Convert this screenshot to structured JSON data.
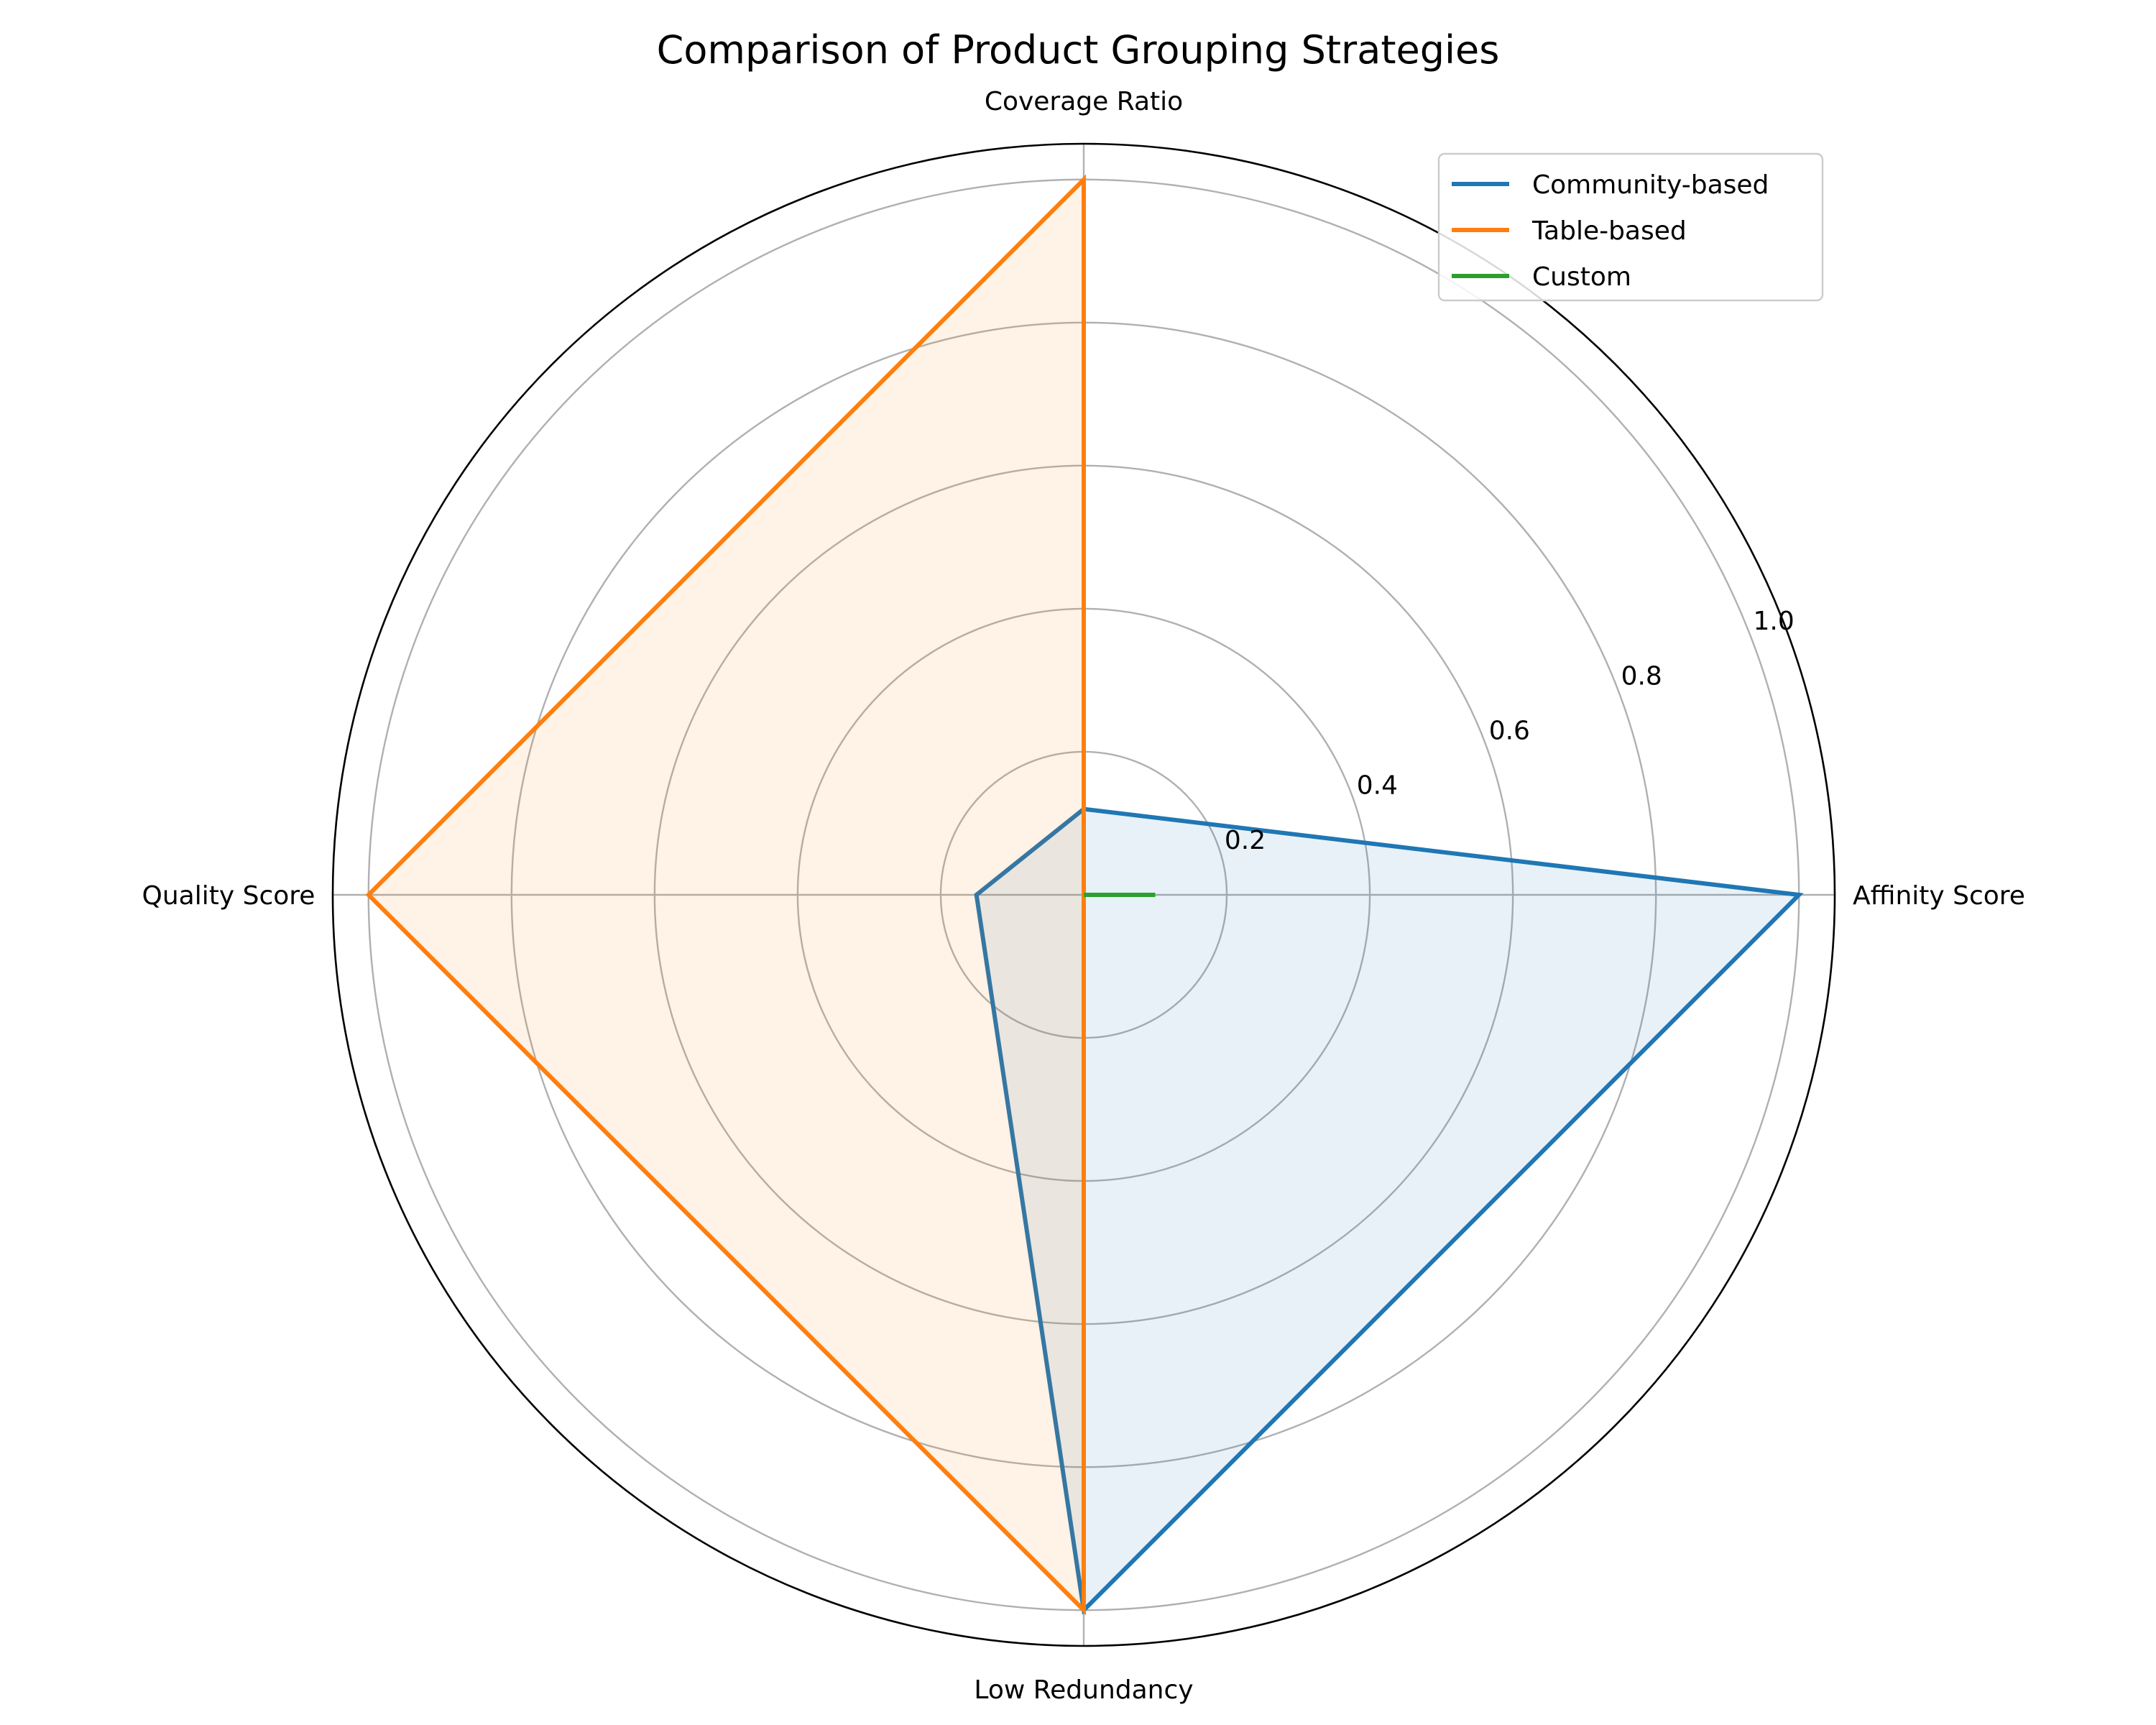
{
  "chart_data": {
    "type": "radar",
    "title": "Comparison of Product Grouping Strategies",
    "axes": [
      "Affinity Score",
      "Coverage Ratio",
      "Quality Score",
      "Low Redundancy"
    ],
    "rlim": [
      0,
      1.05
    ],
    "radial_ticks": [
      "0.2",
      "0.4",
      "0.6",
      "0.8",
      "1.0"
    ],
    "radial_tick_values": [
      0.2,
      0.4,
      0.6,
      0.8,
      1.0
    ],
    "grid": true,
    "legend_position": "top-right",
    "series": [
      {
        "name": "Community-based",
        "color": "#1f77b4",
        "values": [
          1.0,
          0.12,
          0.15,
          1.0
        ]
      },
      {
        "name": "Table-based",
        "color": "#ff7f0e",
        "values": [
          0.0,
          1.0,
          1.0,
          1.0
        ]
      },
      {
        "name": "Custom",
        "color": "#2ca02c",
        "values": [
          0.1,
          0.0,
          0.0,
          0.0
        ]
      }
    ]
  }
}
